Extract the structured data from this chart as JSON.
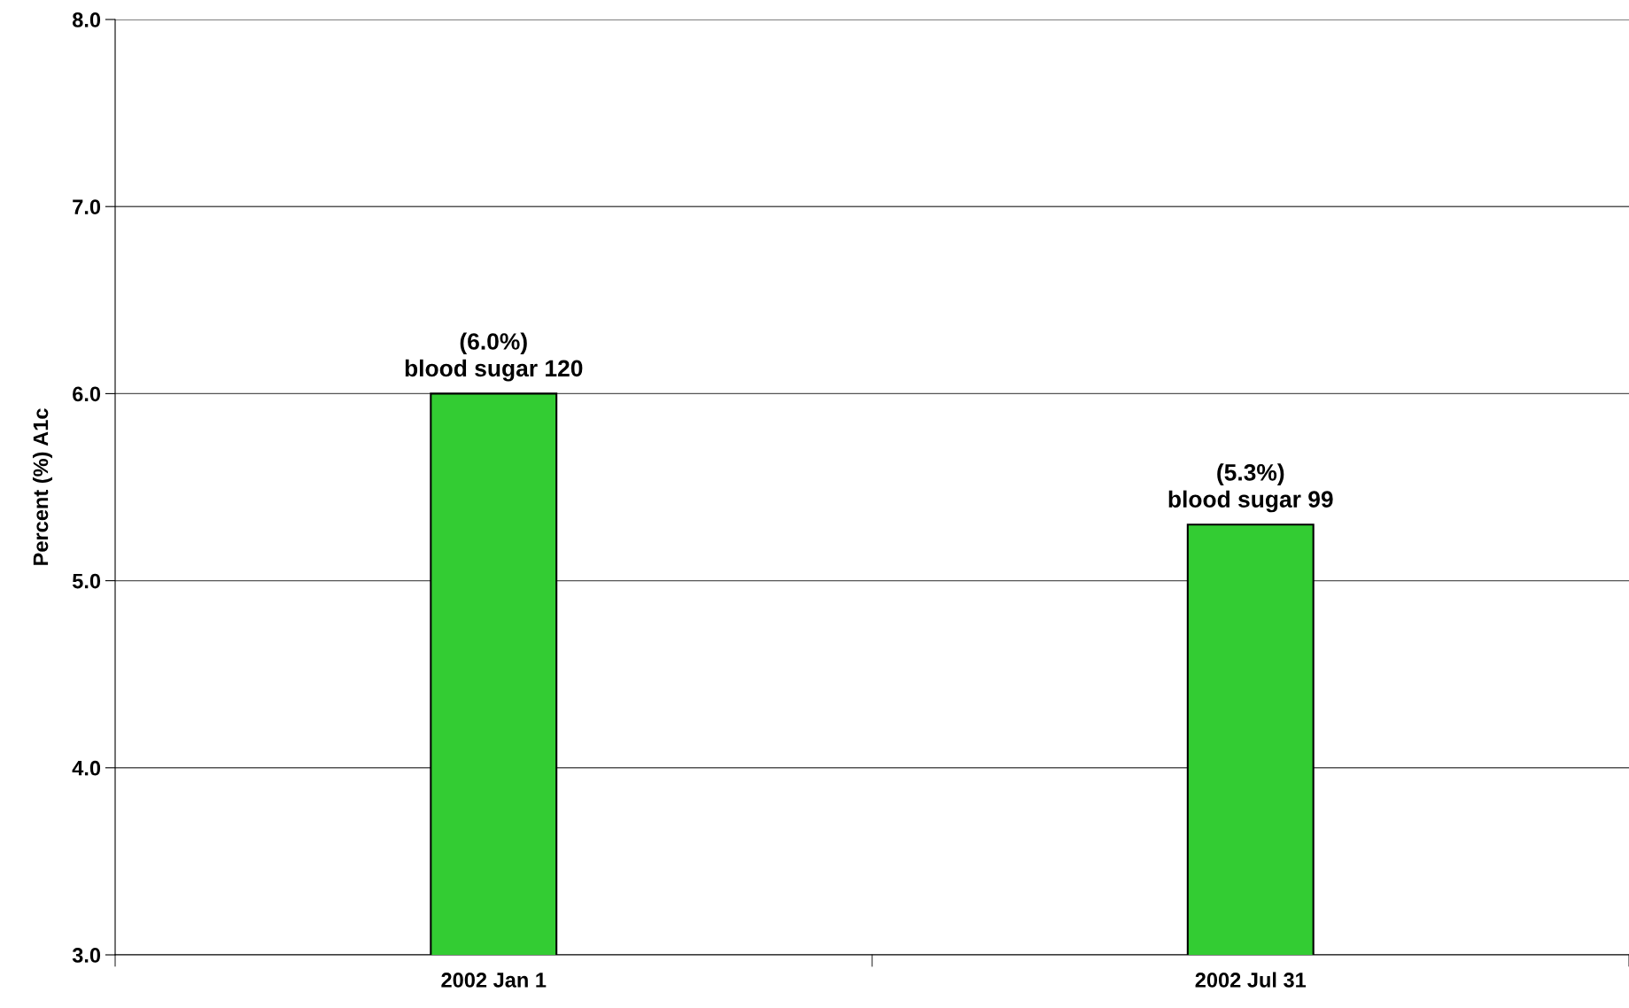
{
  "chart_data": {
    "type": "bar",
    "ylabel": "Percent (%) A1c",
    "categories": [
      "2002 Jan 1",
      "2002 Jul 31"
    ],
    "values": [
      6.0,
      5.3
    ],
    "color": "#33cc33",
    "value_labels": [
      "(6.0%)\nblood sugar 120",
      "(5.3%)\nblood sugar 99"
    ],
    "ylim": [
      3.0,
      8.0
    ],
    "yticks": [
      {
        "value": 3,
        "label": "3.0"
      },
      {
        "value": 4,
        "label": "4.0"
      },
      {
        "value": 5,
        "label": "5.0"
      },
      {
        "value": 6,
        "label": "6.0"
      },
      {
        "value": 7,
        "label": "7.0"
      },
      {
        "value": 8,
        "label": "8.0"
      }
    ],
    "grid": "y",
    "legend": false
  }
}
